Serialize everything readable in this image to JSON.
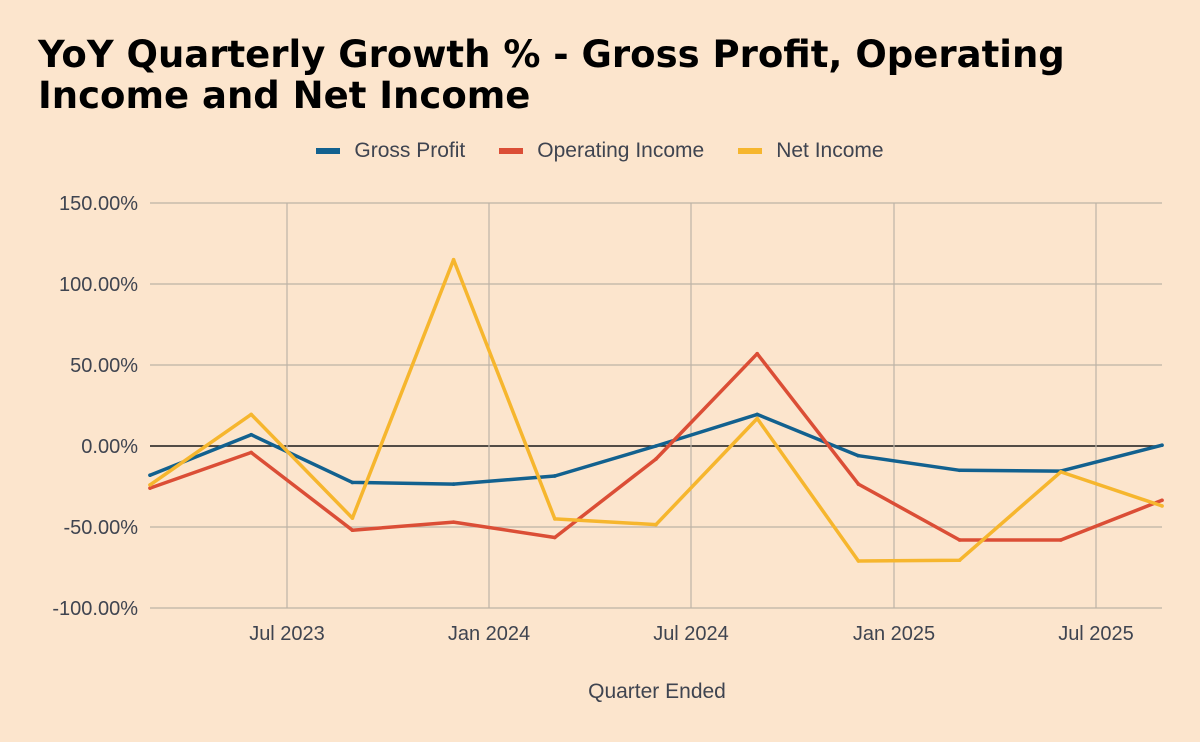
{
  "chart_data": {
    "type": "line",
    "title": "YoY Quarterly Growth % - Gross Profit, Operating Income and Net Income",
    "xlabel": "Quarter Ended",
    "ylabel": "",
    "ylim": [
      -100,
      150
    ],
    "y_ticks": [
      150,
      100,
      50,
      0,
      -50,
      -100
    ],
    "y_tick_labels": [
      "150.00%",
      "100.00%",
      "50.00%",
      "0.00%",
      "-50.00%",
      "-100.00%"
    ],
    "x_ticks": [
      "Jul 2023",
      "Jan 2024",
      "Jul 2024",
      "Jan 2025",
      "Jul 2025"
    ],
    "categories": [
      "Mar 2023",
      "Jun 2023",
      "Sep 2023",
      "Dec 2023",
      "Mar 2024",
      "Jun 2024",
      "Sep 2024",
      "Dec 2024",
      "Mar 2025",
      "Jun 2025",
      "Sep 2025"
    ],
    "legend_position": "top-center",
    "grid": true,
    "series": [
      {
        "name": "Gross Profit",
        "color": "#12618f",
        "values": [
          -18,
          7,
          -22.5,
          -23.5,
          -18.5,
          0,
          19.5,
          -6,
          -15,
          -15.5,
          0.5
        ]
      },
      {
        "name": "Operating Income",
        "color": "#db4e36",
        "values": [
          -26,
          -4,
          -52,
          -47,
          -56.5,
          -8,
          57,
          -23.5,
          -58,
          -58,
          -33.5
        ]
      },
      {
        "name": "Net Income",
        "color": "#f6b62e",
        "values": [
          -24,
          19.5,
          -44.5,
          115,
          -45,
          -48.5,
          17,
          -71,
          -70.5,
          -16,
          -37
        ]
      }
    ]
  }
}
